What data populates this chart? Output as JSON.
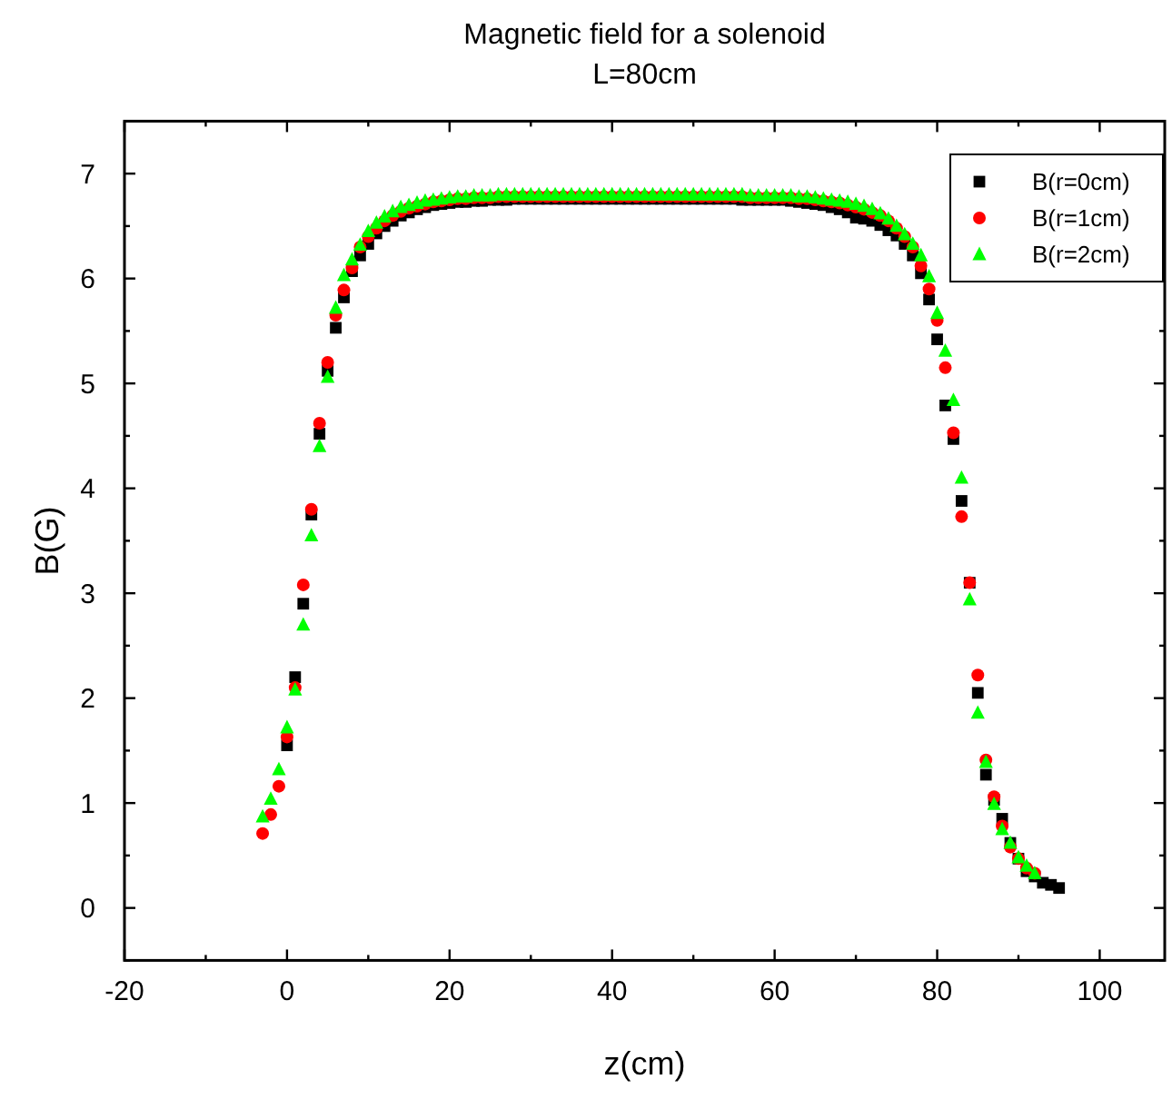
{
  "chart_data": {
    "type": "scatter",
    "title": "Magnetic field for a solenoid",
    "subtitle": "L=80cm",
    "xlabel": "z(cm)",
    "ylabel": "B(G)",
    "xlim": [
      -20,
      108
    ],
    "ylim": [
      -0.5,
      7.5
    ],
    "xticks": [
      -20,
      {
        "value": -10,
        "label": null
      },
      0,
      {
        "value": 10,
        "label": null
      },
      20,
      {
        "value": 30,
        "label": null
      },
      40,
      {
        "value": 50,
        "label": null
      },
      60,
      {
        "value": 70,
        "label": null
      },
      80,
      {
        "value": 90,
        "label": null
      },
      100
    ],
    "yticks": [
      {
        "value": -0.5,
        "label": null
      },
      0,
      {
        "value": 0.5,
        "label": null
      },
      1,
      {
        "value": 1.5,
        "label": null
      },
      2,
      {
        "value": 2.5,
        "label": null
      },
      3,
      {
        "value": 3.5,
        "label": null
      },
      4,
      {
        "value": 4.5,
        "label": null
      },
      5,
      {
        "value": 5.5,
        "label": null
      },
      6,
      {
        "value": 6.5,
        "label": null
      },
      7
    ],
    "grid": false,
    "legend": "top right",
    "series": [
      {
        "name": "B(r=0cm)",
        "color": "#000000",
        "marker": "square",
        "x": [
          0,
          1,
          2,
          3,
          4,
          5,
          6,
          7,
          8,
          9,
          10,
          11,
          12,
          13,
          14,
          15,
          16,
          17,
          18,
          19,
          20,
          21,
          22,
          23,
          24,
          25,
          26,
          27,
          28,
          29,
          30,
          31,
          32,
          33,
          34,
          35,
          36,
          37,
          38,
          39,
          40,
          41,
          42,
          43,
          44,
          45,
          46,
          47,
          48,
          49,
          50,
          51,
          52,
          53,
          54,
          55,
          56,
          57,
          58,
          59,
          60,
          61,
          62,
          63,
          64,
          65,
          66,
          67,
          68,
          69,
          70,
          71,
          72,
          73,
          74,
          75,
          76,
          77,
          78,
          79,
          80,
          81,
          82,
          83,
          84,
          85,
          86,
          87,
          88,
          89,
          90,
          91,
          92,
          93,
          94,
          95
        ],
        "values": [
          1.55,
          2.2,
          2.9,
          3.75,
          4.52,
          5.12,
          5.53,
          5.82,
          6.07,
          6.22,
          6.33,
          6.43,
          6.5,
          6.55,
          6.6,
          6.63,
          6.66,
          6.68,
          6.7,
          6.71,
          6.72,
          6.73,
          6.73,
          6.74,
          6.74,
          6.75,
          6.75,
          6.75,
          6.76,
          6.76,
          6.76,
          6.76,
          6.76,
          6.76,
          6.76,
          6.76,
          6.76,
          6.76,
          6.76,
          6.76,
          6.76,
          6.76,
          6.76,
          6.76,
          6.76,
          6.76,
          6.76,
          6.76,
          6.76,
          6.76,
          6.76,
          6.76,
          6.76,
          6.76,
          6.76,
          6.76,
          6.75,
          6.75,
          6.75,
          6.75,
          6.75,
          6.75,
          6.74,
          6.73,
          6.72,
          6.71,
          6.7,
          6.68,
          6.66,
          6.63,
          6.58,
          6.57,
          6.55,
          6.51,
          6.46,
          6.41,
          6.33,
          6.22,
          6.05,
          5.8,
          5.42,
          4.79,
          4.47,
          3.88,
          3.1,
          2.05,
          1.27,
          1.03,
          0.85,
          0.62,
          0.47,
          0.35,
          0.3,
          0.24,
          0.22,
          0.19
        ]
      },
      {
        "name": "B(r=1cm)",
        "color": "#ff0000",
        "marker": "circle",
        "x": [
          -3,
          -2,
          -1,
          0,
          1,
          2,
          3,
          4,
          5,
          6,
          7,
          8,
          9,
          10,
          11,
          12,
          13,
          14,
          15,
          16,
          17,
          18,
          19,
          20,
          21,
          22,
          23,
          24,
          25,
          26,
          27,
          28,
          29,
          30,
          31,
          32,
          33,
          34,
          35,
          36,
          37,
          38,
          39,
          40,
          41,
          42,
          43,
          44,
          45,
          46,
          47,
          48,
          49,
          50,
          51,
          52,
          53,
          54,
          55,
          56,
          57,
          58,
          59,
          60,
          61,
          62,
          63,
          64,
          65,
          66,
          67,
          68,
          69,
          70,
          71,
          72,
          73,
          74,
          75,
          76,
          77,
          78,
          79,
          80,
          81,
          82,
          83,
          84,
          85,
          86,
          87,
          88,
          89,
          90,
          91,
          92
        ],
        "values": [
          0.71,
          0.89,
          1.16,
          1.63,
          2.1,
          3.08,
          3.8,
          4.62,
          5.2,
          5.65,
          5.89,
          6.1,
          6.3,
          6.4,
          6.48,
          6.55,
          6.6,
          6.64,
          6.67,
          6.69,
          6.71,
          6.73,
          6.74,
          6.75,
          6.76,
          6.76,
          6.77,
          6.77,
          6.77,
          6.78,
          6.78,
          6.78,
          6.78,
          6.78,
          6.78,
          6.78,
          6.78,
          6.78,
          6.78,
          6.78,
          6.78,
          6.78,
          6.78,
          6.78,
          6.78,
          6.78,
          6.78,
          6.78,
          6.78,
          6.78,
          6.78,
          6.78,
          6.78,
          6.78,
          6.78,
          6.78,
          6.78,
          6.78,
          6.78,
          6.78,
          6.77,
          6.77,
          6.77,
          6.77,
          6.77,
          6.77,
          6.76,
          6.76,
          6.75,
          6.74,
          6.73,
          6.72,
          6.7,
          6.68,
          6.66,
          6.63,
          6.6,
          6.55,
          6.48,
          6.4,
          6.3,
          6.12,
          5.9,
          5.6,
          5.15,
          4.53,
          3.73,
          3.1,
          2.22,
          1.41,
          1.06,
          0.78,
          0.58,
          0.47,
          0.38,
          0.33
        ]
      },
      {
        "name": "B(r=2cm)",
        "color": "#00ff00",
        "marker": "triangle",
        "x": [
          -3,
          -2,
          -1,
          0,
          1,
          2,
          3,
          4,
          5,
          6,
          7,
          8,
          9,
          10,
          11,
          12,
          13,
          14,
          15,
          16,
          17,
          18,
          19,
          20,
          21,
          22,
          23,
          24,
          25,
          26,
          27,
          28,
          29,
          30,
          31,
          32,
          33,
          34,
          35,
          36,
          37,
          38,
          39,
          40,
          41,
          42,
          43,
          44,
          45,
          46,
          47,
          48,
          49,
          50,
          51,
          52,
          53,
          54,
          55,
          56,
          57,
          58,
          59,
          60,
          61,
          62,
          63,
          64,
          65,
          66,
          67,
          68,
          69,
          70,
          71,
          72,
          73,
          74,
          75,
          76,
          77,
          78,
          79,
          80,
          81,
          82,
          83,
          84,
          85,
          86,
          87,
          88,
          89,
          90,
          91,
          92
        ],
        "values": [
          0.87,
          1.04,
          1.32,
          1.72,
          2.08,
          2.7,
          3.55,
          4.4,
          5.06,
          5.72,
          6.03,
          6.18,
          6.32,
          6.45,
          6.53,
          6.59,
          6.64,
          6.68,
          6.7,
          6.72,
          6.74,
          6.75,
          6.76,
          6.77,
          6.78,
          6.78,
          6.79,
          6.79,
          6.79,
          6.8,
          6.8,
          6.8,
          6.8,
          6.8,
          6.8,
          6.8,
          6.8,
          6.8,
          6.8,
          6.8,
          6.8,
          6.8,
          6.8,
          6.8,
          6.8,
          6.8,
          6.8,
          6.8,
          6.8,
          6.8,
          6.8,
          6.8,
          6.8,
          6.8,
          6.8,
          6.8,
          6.8,
          6.8,
          6.8,
          6.8,
          6.79,
          6.79,
          6.79,
          6.79,
          6.79,
          6.79,
          6.78,
          6.78,
          6.77,
          6.76,
          6.75,
          6.74,
          6.73,
          6.71,
          6.69,
          6.66,
          6.62,
          6.57,
          6.5,
          6.42,
          6.33,
          6.22,
          6.02,
          5.67,
          5.31,
          4.84,
          4.1,
          2.94,
          1.86,
          1.39,
          0.99,
          0.75,
          0.62,
          0.48,
          0.4,
          0.33
        ]
      }
    ]
  }
}
